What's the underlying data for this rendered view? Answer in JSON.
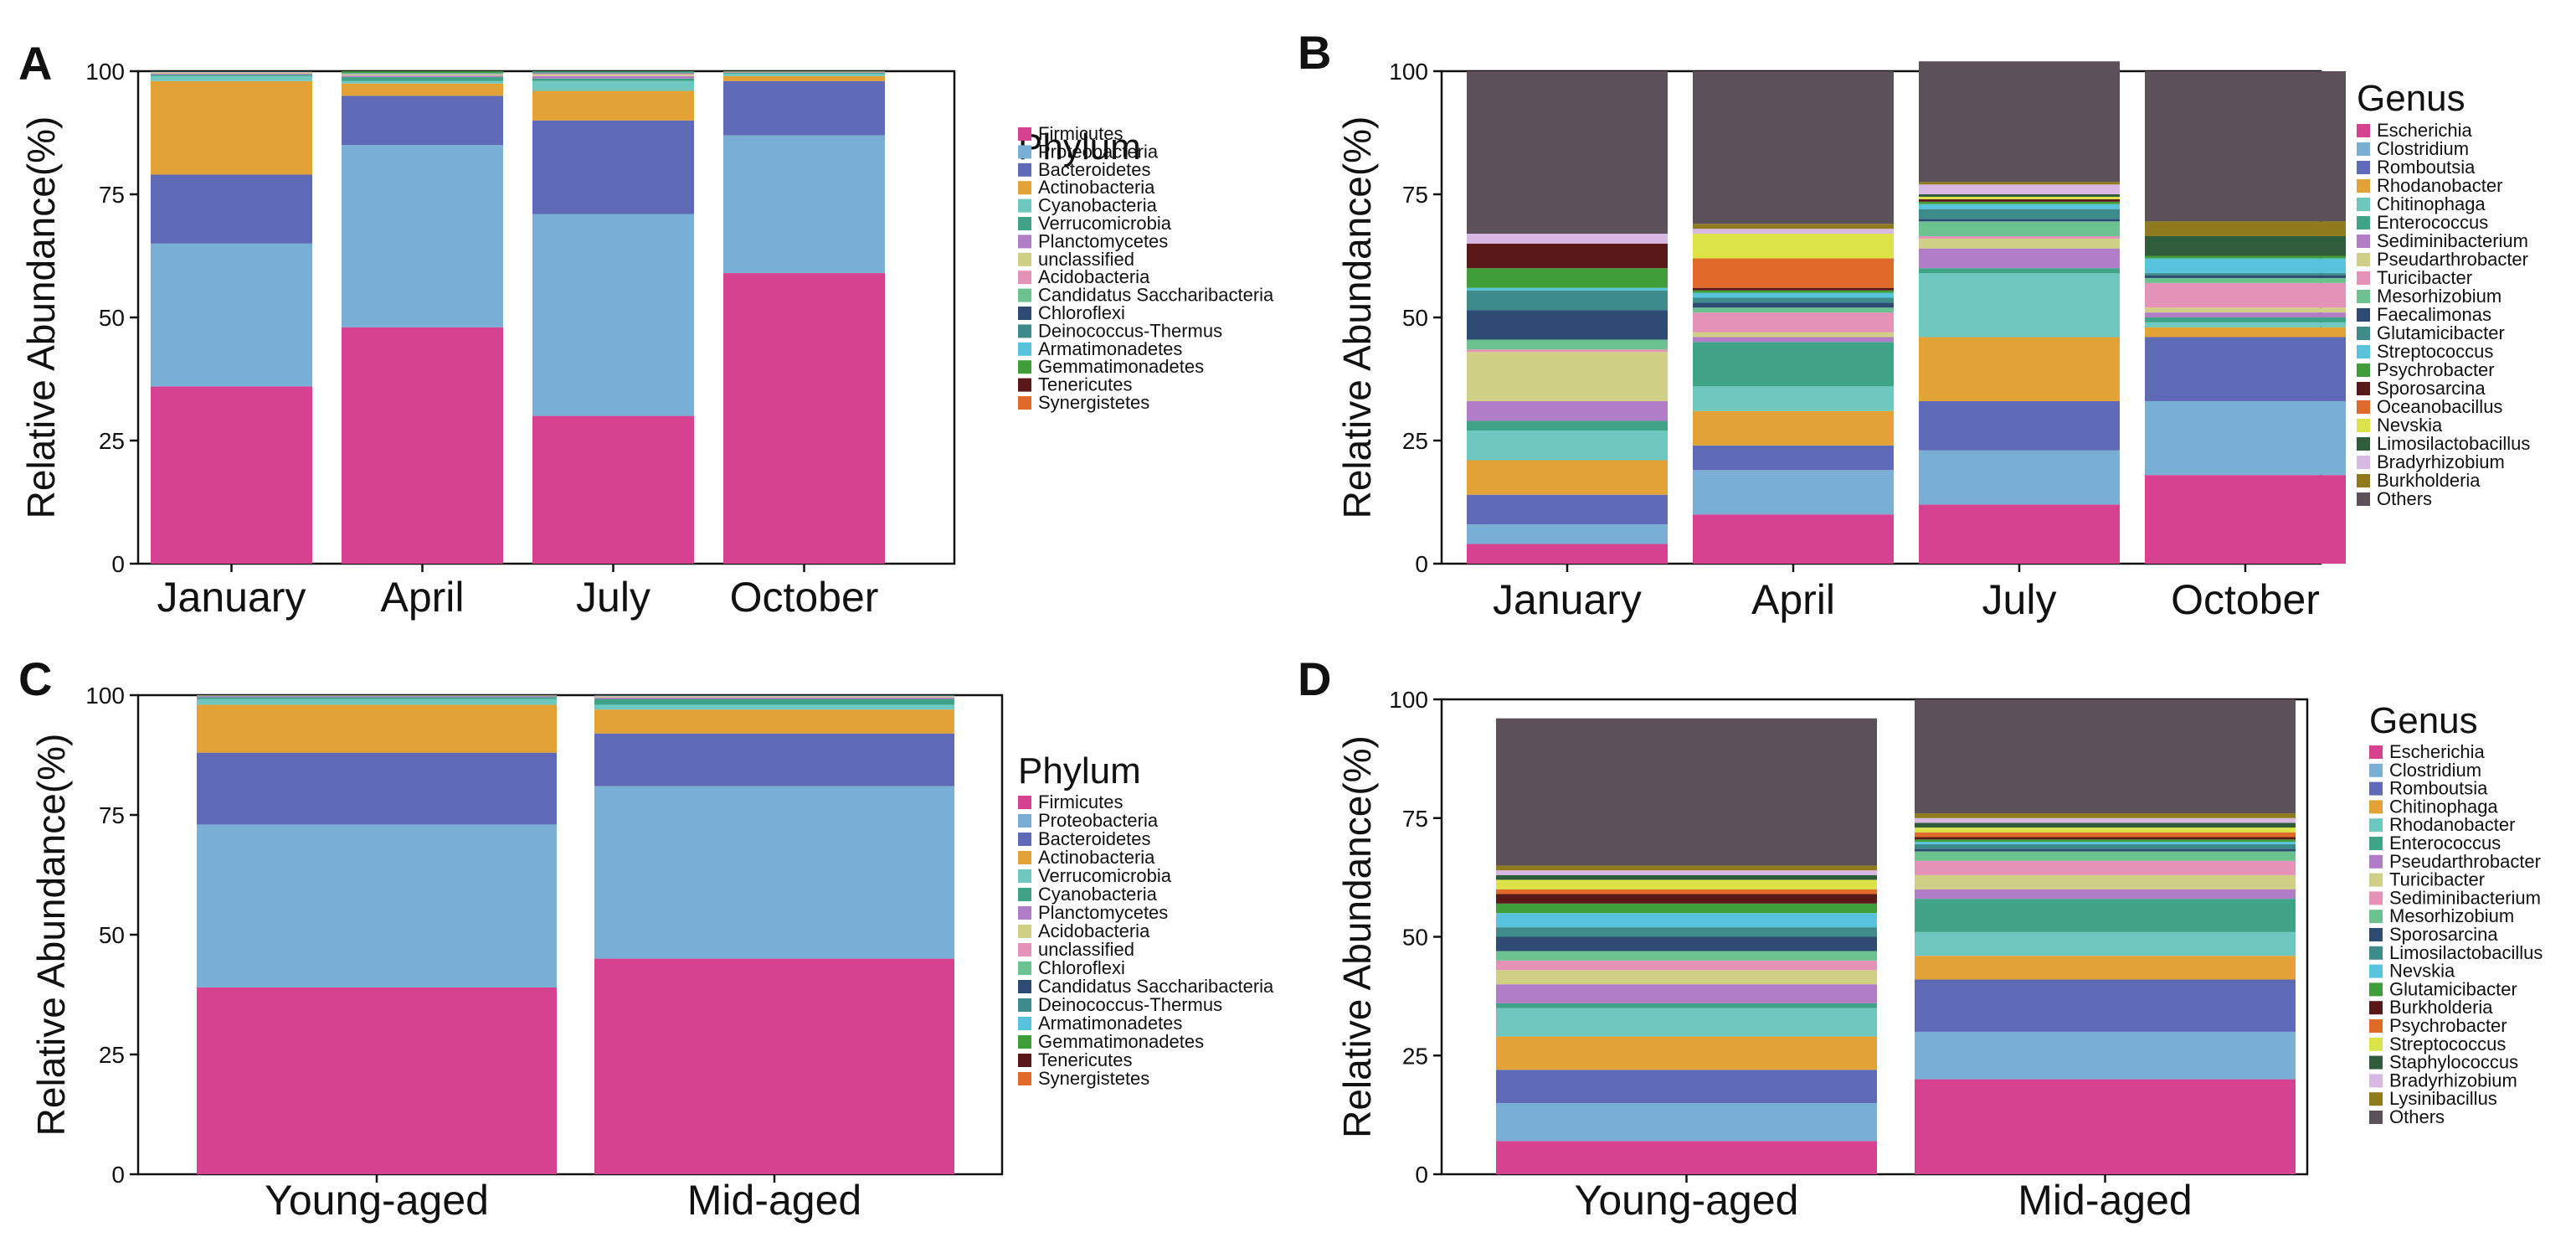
{
  "chart_data": [
    {
      "panel": "A",
      "type": "stacked-bar",
      "ylabel": "Relative Abundance(%)",
      "ylim": [
        0,
        100
      ],
      "yticks": [
        0,
        25,
        50,
        75,
        100
      ],
      "legend_title": "Phylum",
      "categories": [
        "January",
        "April",
        "July",
        "October"
      ],
      "series": [
        {
          "name": "Firmicutes",
          "color": "#D6428F",
          "values": [
            36,
            48,
            30,
            59
          ]
        },
        {
          "name": "Proteobacteria",
          "color": "#79AFD5",
          "values": [
            29,
            37,
            41,
            28
          ]
        },
        {
          "name": "Bacteroidetes",
          "color": "#5E6AB6",
          "values": [
            14,
            10,
            19,
            11
          ]
        },
        {
          "name": "Actinobacteria",
          "color": "#E3A236",
          "values": [
            19,
            2.5,
            6,
            1
          ]
        },
        {
          "name": "Cyanobacteria",
          "color": "#6EC8C0",
          "values": [
            1,
            0.5,
            2,
            0.5
          ]
        },
        {
          "name": "Verrucomicrobia",
          "color": "#3FA487",
          "values": [
            0.3,
            0.8,
            0.5,
            0.2
          ]
        },
        {
          "name": "Planctomycetes",
          "color": "#B17DC6",
          "values": [
            0.2,
            0.3,
            0.5,
            0.1
          ]
        },
        {
          "name": "unclassified",
          "color": "#CFCF85",
          "values": [
            0.2,
            0.2,
            0.3,
            0.1
          ]
        },
        {
          "name": "Acidobacteria",
          "color": "#E592B9",
          "values": [
            0.1,
            0.1,
            0.2,
            0.05
          ]
        },
        {
          "name": "Candidatus Saccharibacteria",
          "color": "#6CC28F",
          "values": [
            0.05,
            0.1,
            0.1,
            0.05
          ]
        },
        {
          "name": "Chloroflexi",
          "color": "#2E4B73",
          "values": [
            0.05,
            0.05,
            0.1,
            0
          ]
        },
        {
          "name": "Deinococcus-Thermus",
          "color": "#3D8B8B",
          "values": [
            0.05,
            0.05,
            0.1,
            0
          ]
        },
        {
          "name": "Armatimonadetes",
          "color": "#58C3DC",
          "values": [
            0,
            0.05,
            0.1,
            0
          ]
        },
        {
          "name": "Gemmatimonadetes",
          "color": "#3F9E39",
          "values": [
            0,
            0.35,
            0.1,
            0
          ]
        },
        {
          "name": "Tenericutes",
          "color": "#5A1818",
          "values": [
            0,
            0,
            0,
            0
          ]
        },
        {
          "name": "Synergistetes",
          "color": "#E06A2A",
          "values": [
            0,
            0,
            0,
            0
          ]
        }
      ]
    },
    {
      "panel": "B",
      "type": "stacked-bar",
      "ylabel": "Relative Abundance(%)",
      "ylim": [
        0,
        100
      ],
      "yticks": [
        0,
        25,
        50,
        75,
        100
      ],
      "legend_title": "Genus",
      "categories": [
        "January",
        "April",
        "July",
        "October"
      ],
      "series": [
        {
          "name": "Escherichia",
          "color": "#D6428F",
          "values": [
            4,
            10,
            12,
            18
          ]
        },
        {
          "name": "Clostridium",
          "color": "#79AFD5",
          "values": [
            4,
            9,
            11,
            15
          ]
        },
        {
          "name": "Romboutsia",
          "color": "#5E6AB6",
          "values": [
            6,
            5,
            10,
            13
          ]
        },
        {
          "name": "Rhodanobacter",
          "color": "#E3A236",
          "values": [
            7,
            7,
            13,
            2
          ]
        },
        {
          "name": "Chitinophaga",
          "color": "#6EC8C0",
          "values": [
            6,
            5,
            13,
            1
          ]
        },
        {
          "name": "Enterococcus",
          "color": "#3FA487",
          "values": [
            2,
            9,
            1,
            1
          ]
        },
        {
          "name": "Sediminibacterium",
          "color": "#B17DC6",
          "values": [
            4,
            1,
            4,
            1
          ]
        },
        {
          "name": "Pseudarthrobacter",
          "color": "#CFCF85",
          "values": [
            10,
            1,
            2,
            1
          ]
        },
        {
          "name": "Turicibacter",
          "color": "#E592B9",
          "values": [
            0.5,
            4,
            0.5,
            5
          ]
        },
        {
          "name": "Mesorhizobium",
          "color": "#6CC28F",
          "values": [
            2,
            1,
            3,
            1
          ]
        },
        {
          "name": "Faecalimonas",
          "color": "#2E4B73",
          "values": [
            6,
            1,
            0.5,
            0.5
          ]
        },
        {
          "name": "Glutamicibacter",
          "color": "#3D8B8B",
          "values": [
            4,
            1,
            2,
            0.5
          ]
        },
        {
          "name": "Streptococcus",
          "color": "#58C3DC",
          "values": [
            0.5,
            1,
            1,
            3
          ]
        },
        {
          "name": "Psychrobacter",
          "color": "#3F9E39",
          "values": [
            4,
            0.5,
            0.5,
            0.5
          ]
        },
        {
          "name": "Sporosarcina",
          "color": "#5A1818",
          "values": [
            5,
            0.5,
            0.5,
            0
          ]
        },
        {
          "name": "Oceanobacillus",
          "color": "#E06A2A",
          "values": [
            0,
            6,
            0,
            0
          ]
        },
        {
          "name": "Nevskia",
          "color": "#DCE346",
          "values": [
            0,
            5,
            0.5,
            0
          ]
        },
        {
          "name": "Limosilactobacillus",
          "color": "#2F5D3C",
          "values": [
            0,
            0,
            0.5,
            4
          ]
        },
        {
          "name": "Bradyrhizobium",
          "color": "#D8B8E3",
          "values": [
            2,
            1,
            2,
            0
          ]
        },
        {
          "name": "Burkholderia",
          "color": "#8F7A1E",
          "values": [
            0,
            1,
            0.5,
            3
          ]
        },
        {
          "name": "Others",
          "color": "#5C5059",
          "values": [
            33,
            31,
            24.5,
            30.5
          ]
        }
      ]
    },
    {
      "panel": "C",
      "type": "stacked-bar",
      "ylabel": "Relative Abundance(%)",
      "ylim": [
        0,
        100
      ],
      "yticks": [
        0,
        25,
        50,
        75,
        100
      ],
      "legend_title": "Phylum",
      "categories": [
        "Young-aged",
        "Mid-aged"
      ],
      "series": [
        {
          "name": "Firmicutes",
          "color": "#D6428F",
          "values": [
            39,
            45
          ]
        },
        {
          "name": "Proteobacteria",
          "color": "#79AFD5",
          "values": [
            34,
            36
          ]
        },
        {
          "name": "Bacteroidetes",
          "color": "#5E6AB6",
          "values": [
            15,
            11
          ]
        },
        {
          "name": "Actinobacteria",
          "color": "#E3A236",
          "values": [
            10,
            5
          ]
        },
        {
          "name": "Verrucomicrobia",
          "color": "#6EC8C0",
          "values": [
            1.2,
            1
          ]
        },
        {
          "name": "Cyanobacteria",
          "color": "#3FA487",
          "values": [
            0.4,
            1.2
          ]
        },
        {
          "name": "Planctomycetes",
          "color": "#B17DC6",
          "values": [
            0.2,
            0.3
          ]
        },
        {
          "name": "Acidobacteria",
          "color": "#CFCF85",
          "values": [
            0.1,
            0.2
          ]
        },
        {
          "name": "unclassified",
          "color": "#E592B9",
          "values": [
            0.05,
            0.1
          ]
        },
        {
          "name": "Chloroflexi",
          "color": "#6CC28F",
          "values": [
            0.05,
            0.05
          ]
        },
        {
          "name": "Candidatus Saccharibacteria",
          "color": "#2E4B73",
          "values": [
            0,
            0.05
          ]
        },
        {
          "name": "Deinococcus-Thermus",
          "color": "#3D8B8B",
          "values": [
            0,
            0.05
          ]
        },
        {
          "name": "Armatimonadetes",
          "color": "#58C3DC",
          "values": [
            0,
            0.05
          ]
        },
        {
          "name": "Gemmatimonadetes",
          "color": "#3F9E39",
          "values": [
            0,
            0
          ]
        },
        {
          "name": "Tenericutes",
          "color": "#5A1818",
          "values": [
            0,
            0
          ]
        },
        {
          "name": "Synergistetes",
          "color": "#E06A2A",
          "values": [
            0,
            0
          ]
        }
      ]
    },
    {
      "panel": "D",
      "type": "stacked-bar",
      "ylabel": "Relative Abundance(%)",
      "ylim": [
        0,
        100
      ],
      "yticks": [
        0,
        25,
        50,
        75,
        100
      ],
      "legend_title": "Genus",
      "categories": [
        "Young-aged",
        "Mid-aged"
      ],
      "series": [
        {
          "name": "Escherichia",
          "color": "#D6428F",
          "values": [
            7,
            20
          ]
        },
        {
          "name": "Clostridium",
          "color": "#79AFD5",
          "values": [
            8,
            10
          ]
        },
        {
          "name": "Romboutsia",
          "color": "#5E6AB6",
          "values": [
            7,
            11
          ]
        },
        {
          "name": "Chitinophaga",
          "color": "#E3A236",
          "values": [
            7,
            5
          ]
        },
        {
          "name": "Rhodanobacter",
          "color": "#6EC8C0",
          "values": [
            6,
            5
          ]
        },
        {
          "name": "Enterococcus",
          "color": "#3FA487",
          "values": [
            1,
            7
          ]
        },
        {
          "name": "Pseudarthrobacter",
          "color": "#B17DC6",
          "values": [
            4,
            2
          ]
        },
        {
          "name": "Turicibacter",
          "color": "#CFCF85",
          "values": [
            3,
            3
          ]
        },
        {
          "name": "Sediminibacterium",
          "color": "#E592B9",
          "values": [
            2,
            3
          ]
        },
        {
          "name": "Mesorhizobium",
          "color": "#6CC28F",
          "values": [
            2,
            2
          ]
        },
        {
          "name": "Sporosarcina",
          "color": "#2E4B73",
          "values": [
            3,
            0.5
          ]
        },
        {
          "name": "Limosilactobacillus",
          "color": "#3D8B8B",
          "values": [
            2,
            1
          ]
        },
        {
          "name": "Nevskia",
          "color": "#58C3DC",
          "values": [
            3,
            0.5
          ]
        },
        {
          "name": "Glutamicibacter",
          "color": "#3F9E39",
          "values": [
            2,
            0.5
          ]
        },
        {
          "name": "Burkholderia",
          "color": "#5A1818",
          "values": [
            2,
            0.5
          ]
        },
        {
          "name": "Psychrobacter",
          "color": "#E06A2A",
          "values": [
            1,
            1
          ]
        },
        {
          "name": "Streptococcus",
          "color": "#DCE346",
          "values": [
            2,
            1
          ]
        },
        {
          "name": "Staphylococcus",
          "color": "#2F5D3C",
          "values": [
            1,
            1
          ]
        },
        {
          "name": "Bradyrhizobium",
          "color": "#D8B8E3",
          "values": [
            1,
            1
          ]
        },
        {
          "name": "Lysinibacillus",
          "color": "#8F7A1E",
          "values": [
            1,
            1
          ]
        },
        {
          "name": "Others",
          "color": "#5C5059",
          "values": [
            31,
            24
          ]
        }
      ]
    }
  ]
}
